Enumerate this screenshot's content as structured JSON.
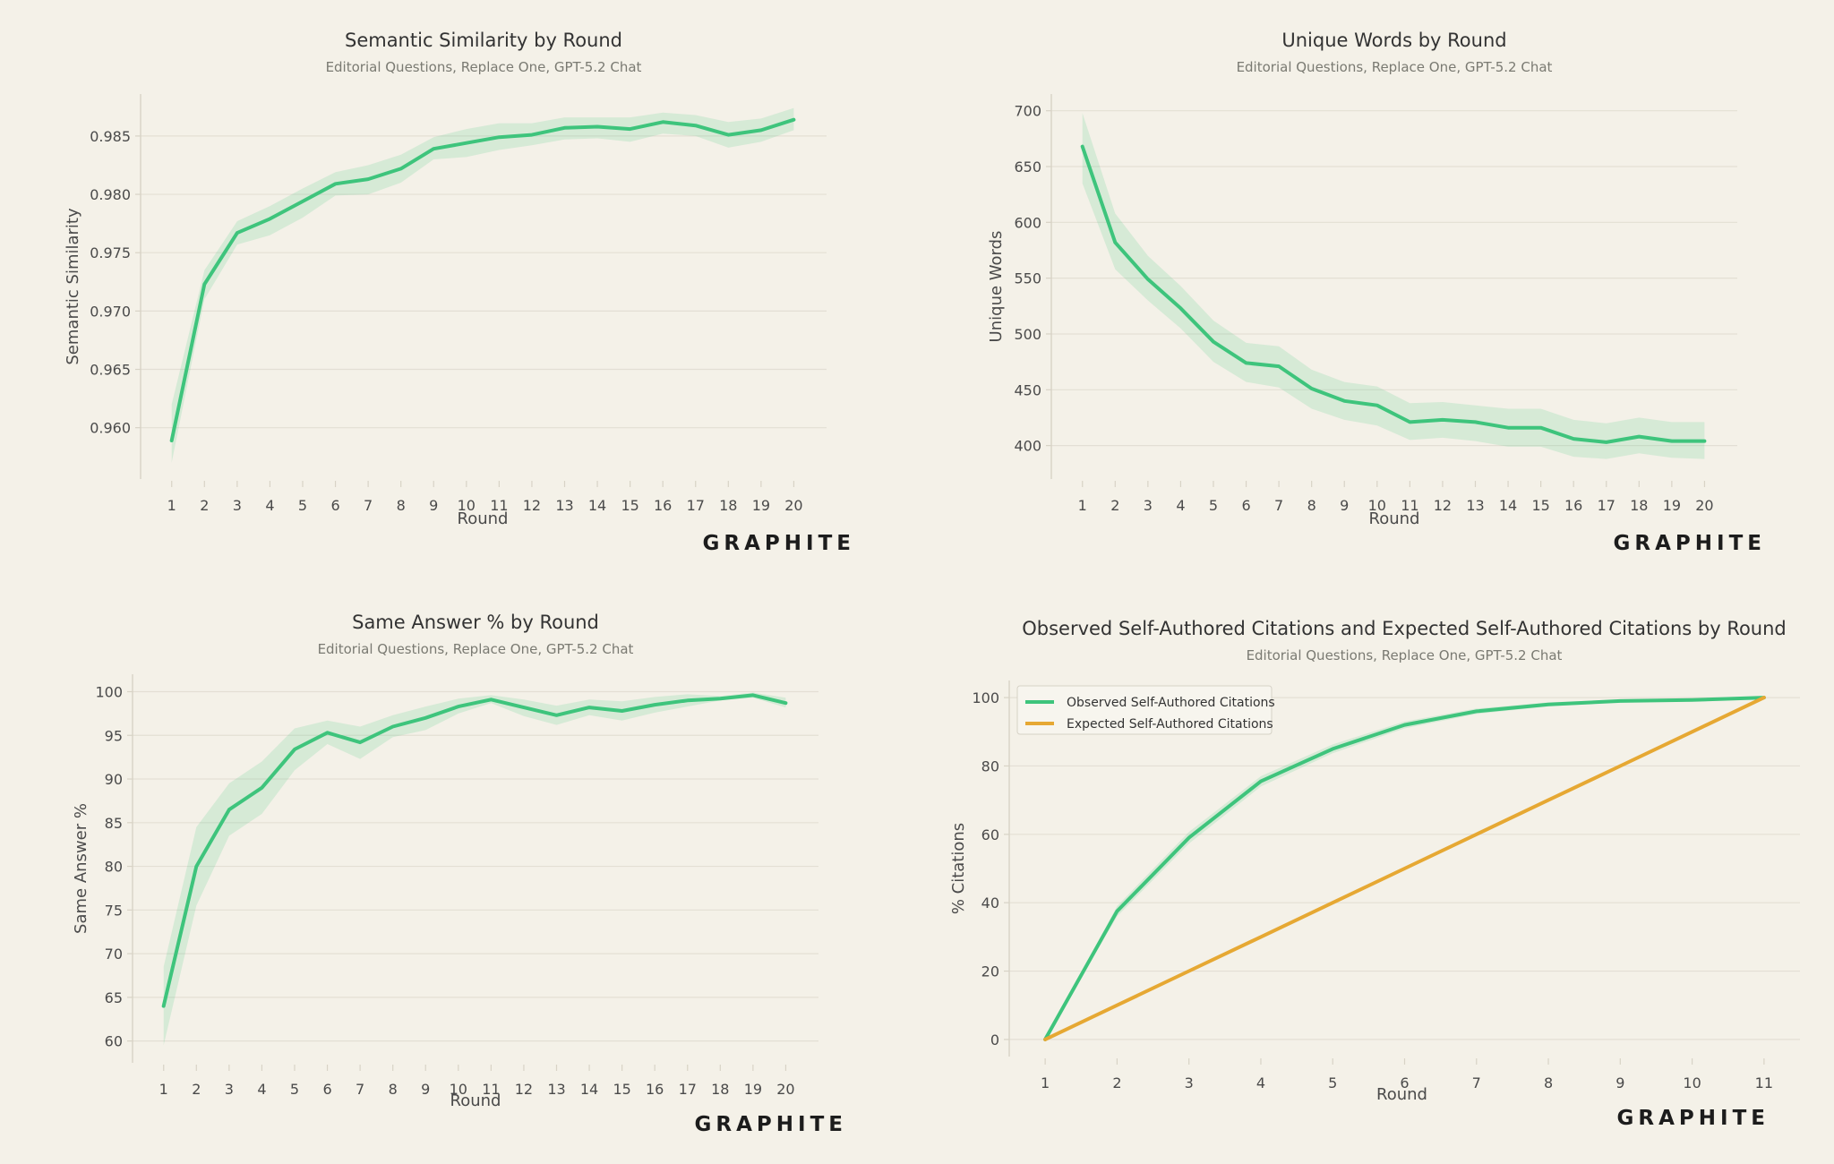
{
  "brand": "GRAPHITE",
  "colors": {
    "background": "#f4f1e8",
    "grid": "#e3dfd4",
    "axis": "#d8d3c6",
    "observed": "#3ec47c",
    "expected": "#e6a833"
  },
  "chart_data": [
    {
      "type": "line",
      "title": "Semantic Similarity by Round",
      "subtitle": "Editorial Questions, Replace One, GPT-5.2 Chat",
      "xlabel": "Round",
      "ylabel": "Semantic Similarity",
      "x": [
        1,
        2,
        3,
        4,
        5,
        6,
        7,
        8,
        9,
        10,
        11,
        12,
        13,
        14,
        15,
        16,
        17,
        18,
        19,
        20
      ],
      "xticks": [
        "1",
        "2",
        "3",
        "4",
        "5",
        "6",
        "7",
        "8",
        "9",
        "10",
        "11",
        "12",
        "13",
        "14",
        "15",
        "16",
        "17",
        "18",
        "19",
        "20"
      ],
      "yticks": [
        "0.960",
        "0.965",
        "0.970",
        "0.975",
        "0.980",
        "0.985"
      ],
      "ytick_values": [
        0.96,
        0.965,
        0.97,
        0.975,
        0.98,
        0.985
      ],
      "xlim": [
        0.05,
        21.0
      ],
      "ylim": [
        0.9556,
        0.9886
      ],
      "grid": true,
      "band": true,
      "series": [
        {
          "values": [
            0.9589,
            0.9723,
            0.9767,
            0.9779,
            0.9794,
            0.9809,
            0.9813,
            0.9822,
            0.9839,
            0.9844,
            0.9849,
            0.9851,
            0.9857,
            0.9858,
            0.9856,
            0.9862,
            0.9859,
            0.9851,
            0.9855,
            0.9864
          ],
          "lower": [
            0.957,
            0.971,
            0.9757,
            0.9765,
            0.978,
            0.9799,
            0.98,
            0.981,
            0.983,
            0.9832,
            0.9838,
            0.9842,
            0.9847,
            0.9848,
            0.9845,
            0.9852,
            0.985,
            0.984,
            0.9845,
            0.9855
          ],
          "upper": [
            0.962,
            0.9735,
            0.9777,
            0.979,
            0.9805,
            0.9819,
            0.9825,
            0.9834,
            0.9849,
            0.9856,
            0.9861,
            0.9861,
            0.9866,
            0.9866,
            0.9866,
            0.987,
            0.9868,
            0.9862,
            0.9865,
            0.9874
          ]
        }
      ]
    },
    {
      "type": "line",
      "title": "Unique Words by Round",
      "subtitle": "Editorial Questions, Replace One, GPT-5.2 Chat",
      "xlabel": "Round",
      "ylabel": "Unique Words",
      "x": [
        1,
        2,
        3,
        4,
        5,
        6,
        7,
        8,
        9,
        10,
        11,
        12,
        13,
        14,
        15,
        16,
        17,
        18,
        19,
        20
      ],
      "xticks": [
        "1",
        "2",
        "3",
        "4",
        "5",
        "6",
        "7",
        "8",
        "9",
        "10",
        "11",
        "12",
        "13",
        "14",
        "15",
        "16",
        "17",
        "18",
        "19",
        "20"
      ],
      "yticks": [
        "400",
        "450",
        "500",
        "550",
        "600",
        "650",
        "700"
      ],
      "ytick_values": [
        400,
        450,
        500,
        550,
        600,
        650,
        700
      ],
      "xlim": [
        0.05,
        21.0
      ],
      "ylim": [
        370,
        715
      ],
      "grid": true,
      "band": true,
      "series": [
        {
          "values": [
            668,
            582,
            549,
            523,
            493,
            474,
            471,
            451,
            440,
            436,
            421,
            423,
            421,
            416,
            416,
            406,
            403,
            408,
            404,
            404
          ],
          "lower": [
            635,
            558,
            530,
            505,
            475,
            457,
            452,
            433,
            423,
            418,
            405,
            407,
            404,
            399,
            399,
            390,
            388,
            393,
            389,
            388
          ],
          "upper": [
            698,
            608,
            570,
            543,
            512,
            492,
            489,
            468,
            457,
            453,
            438,
            439,
            436,
            433,
            433,
            423,
            420,
            425,
            421,
            421
          ]
        }
      ]
    },
    {
      "type": "line",
      "title": "Same Answer % by Round",
      "subtitle": "Editorial Questions, Replace One, GPT-5.2 Chat",
      "xlabel": "Round",
      "ylabel": "Same Answer %",
      "x": [
        1,
        2,
        3,
        4,
        5,
        6,
        7,
        8,
        9,
        10,
        11,
        12,
        13,
        14,
        15,
        16,
        17,
        18,
        19,
        20
      ],
      "xticks": [
        "1",
        "2",
        "3",
        "4",
        "5",
        "6",
        "7",
        "8",
        "9",
        "10",
        "11",
        "12",
        "13",
        "14",
        "15",
        "16",
        "17",
        "18",
        "19",
        "20"
      ],
      "yticks": [
        "60",
        "65",
        "70",
        "75",
        "80",
        "85",
        "90",
        "95",
        "100"
      ],
      "ytick_values": [
        60,
        65,
        70,
        75,
        80,
        85,
        90,
        95,
        100
      ],
      "xlim": [
        0.05,
        21.0
      ],
      "ylim": [
        57.5,
        102.0
      ],
      "grid": true,
      "band": true,
      "series": [
        {
          "values": [
            64,
            80,
            86.5,
            89,
            93.4,
            95.3,
            94.2,
            96,
            97,
            98.3,
            99.1,
            98.2,
            97.3,
            98.2,
            97.8,
            98.5,
            99,
            99.2,
            99.6,
            98.7
          ],
          "lower": [
            59.5,
            75.5,
            83.5,
            86,
            91,
            94,
            92.3,
            94.8,
            95.6,
            97.5,
            98.7,
            97.2,
            96.2,
            97.3,
            96.7,
            97.6,
            98.3,
            99,
            99.3,
            98.2
          ],
          "upper": [
            68.5,
            84.5,
            89.5,
            92,
            95.8,
            96.7,
            96,
            97.3,
            98.3,
            99.2,
            99.6,
            99.1,
            98.4,
            99.1,
            98.9,
            99.4,
            99.7,
            99.5,
            99.9,
            99.3
          ]
        }
      ]
    },
    {
      "type": "line",
      "title": "Observed Self-Authored Citations and Expected Self-Authored Citations by Round",
      "subtitle": "Editorial Questions, Replace One, GPT-5.2 Chat",
      "xlabel": "Round",
      "ylabel": "% Citations",
      "x": [
        1,
        2,
        3,
        4,
        5,
        6,
        7,
        8,
        9,
        10,
        11
      ],
      "xticks": [
        "1",
        "2",
        "3",
        "4",
        "5",
        "6",
        "7",
        "8",
        "9",
        "10",
        "11"
      ],
      "yticks": [
        "0",
        "20",
        "40",
        "60",
        "80",
        "100"
      ],
      "ytick_values": [
        0,
        20,
        40,
        60,
        80,
        100
      ],
      "xlim": [
        0.5,
        11.5
      ],
      "ylim": [
        -5,
        105
      ],
      "grid": true,
      "band": true,
      "legend": "top-left",
      "series": [
        {
          "name": "Observed Self-Authored Citations",
          "color": "#3ec47c",
          "values": [
            0,
            37.5,
            59,
            75.5,
            85,
            92,
            96,
            98,
            99,
            99.3,
            100
          ],
          "lower": [
            0,
            36,
            57.3,
            74,
            83.7,
            91,
            95.2,
            97.4,
            98.6,
            99,
            100
          ],
          "upper": [
            0,
            39,
            60.7,
            77,
            86.3,
            93,
            96.8,
            98.6,
            99.4,
            99.6,
            100
          ]
        },
        {
          "name": "Expected Self-Authored Citations",
          "color": "#e6a833",
          "values": [
            0,
            10,
            20,
            30,
            40,
            50,
            60,
            70,
            80,
            90,
            100
          ]
        }
      ]
    }
  ]
}
